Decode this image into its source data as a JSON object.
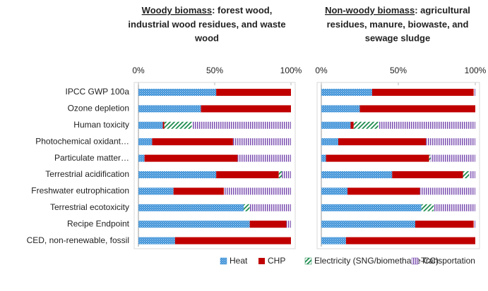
{
  "chart_data": [
    {
      "type": "stacked-bar-horizontal",
      "title": {
        "underlined": "Woody biomass",
        "lines": [
          ": forest wood,",
          "industrial wood residues,  and waste",
          "wood"
        ]
      },
      "categories": [
        "IPCC GWP 100a",
        "Ozone depletion",
        "Human toxicity",
        "Photochemical oxidant…",
        "Particulate matter…",
        "Terrestrial acidification",
        "Freshwater eutrophication",
        "Terrestrial ecotoxicity",
        "Recipe Endpoint",
        "CED, non-renewable, fossil"
      ],
      "series": [
        {
          "name": "Heat",
          "color": "#3a8fd6",
          "values": [
            51,
            41,
            16,
            9,
            4,
            51,
            23,
            69,
            73,
            24
          ]
        },
        {
          "name": "CHP",
          "color": "#c00000",
          "values": [
            49,
            59,
            1,
            53,
            61,
            41,
            33,
            0,
            24,
            76
          ]
        },
        {
          "name": "Electricity (SNG/biomethane-CC)",
          "color": "#1e8c4e",
          "values": [
            0,
            0,
            18,
            0,
            0,
            2,
            0,
            4,
            0,
            0
          ]
        },
        {
          "name": "Transportation",
          "color": "#7b4fb0",
          "values": [
            0,
            0,
            65,
            38,
            35,
            6,
            44,
            27,
            3,
            0
          ]
        }
      ],
      "xlim": [
        0,
        100
      ],
      "xticks": [
        {
          "value": 0,
          "label": "0%"
        },
        {
          "value": 50,
          "label": "50%"
        },
        {
          "value": 100,
          "label": "100%"
        }
      ]
    },
    {
      "type": "stacked-bar-horizontal",
      "title": {
        "underlined": "Non-woody biomass",
        "lines": [
          ": agricultural",
          "residues, manure, biowaste, and",
          "sewage sludge"
        ]
      },
      "series": [
        {
          "values": [
            33,
            25,
            19,
            11,
            3,
            46,
            17,
            65,
            61,
            16
          ]
        },
        {
          "values": [
            66,
            75,
            2,
            57,
            67,
            46,
            47,
            0,
            38,
            84
          ]
        },
        {
          "values": [
            0,
            0,
            16,
            0,
            1,
            4,
            0,
            8,
            0,
            0
          ]
        },
        {
          "values": [
            1,
            0,
            63,
            32,
            29,
            4,
            36,
            27,
            1,
            0
          ]
        }
      ],
      "xlim": [
        0,
        100
      ],
      "xticks": [
        {
          "value": 0,
          "label": "0%"
        },
        {
          "value": 50,
          "label": "50%"
        },
        {
          "value": 100,
          "label": "100%"
        }
      ]
    }
  ]
}
